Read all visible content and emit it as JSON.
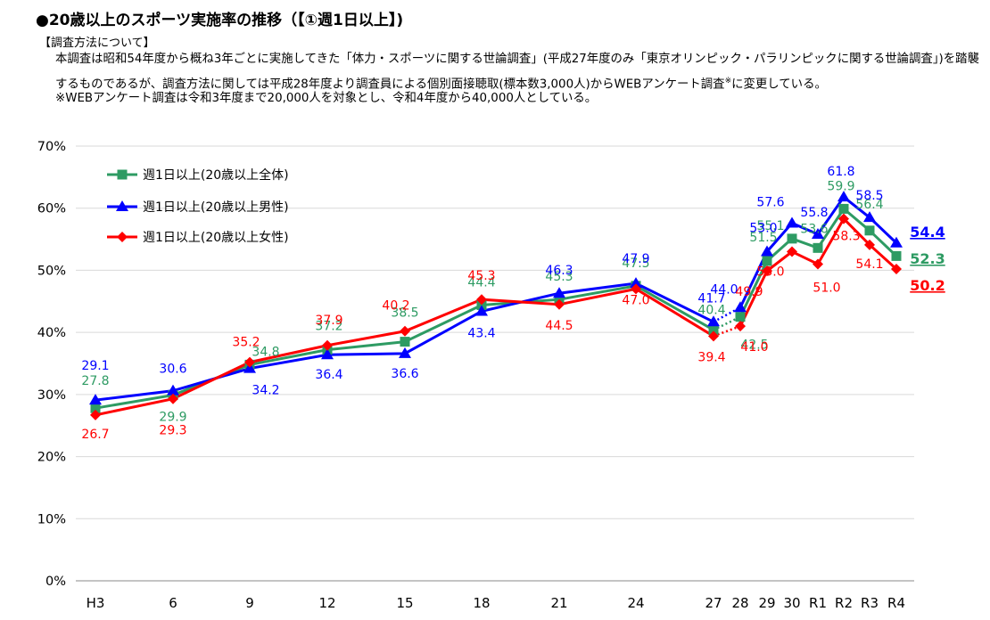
{
  "header": {
    "title": "●20歳以上のスポーツ実施率の推移（【①週1日以上】)",
    "method_heading": "【調査方法について】",
    "line1": "本調査は昭和54年度から概ね3年ごとに実施してきた「体力・スポーツに関する世論調査」(平成27年度のみ「東京オリンピック・パラリンピックに関する世論調査」)を踏襲",
    "line2_a": "するものであるが、調査方法に関しては平成28年度より調査員による個別面接聴取(標本数3,000人)からWEBアンケート調査",
    "line2_sup": "※",
    "line2_b": "に変更している。",
    "line3": "※WEBアンケート調査は令和3年度まで20,000人を対象とし、令和4年度から40,000人としている。"
  },
  "chart_data": {
    "type": "line",
    "categories": [
      "H3",
      "6",
      "9",
      "12",
      "15",
      "18",
      "21",
      "24",
      "27",
      "28",
      "29",
      "30",
      "R1",
      "R2",
      "R3",
      "R4"
    ],
    "ylim": [
      0,
      70
    ],
    "yticks": [
      "0%",
      "10%",
      "20%",
      "30%",
      "40%",
      "50%",
      "60%",
      "70%"
    ],
    "legend_position": "top-left",
    "grid": "horizontal",
    "series": [
      {
        "name": "週1日以上(20歳以上全体)",
        "color": "#2e9b63",
        "marker": "square",
        "values": [
          27.8,
          29.9,
          34.8,
          37.2,
          38.5,
          44.4,
          45.3,
          47.5,
          40.4,
          42.5,
          51.5,
          55.1,
          53.6,
          59.9,
          56.4,
          52.3
        ],
        "end_label": "52.3"
      },
      {
        "name": "週1日以上(20歳以上男性)",
        "color": "#0000ff",
        "marker": "triangle",
        "values": [
          29.1,
          30.6,
          34.2,
          36.4,
          36.6,
          43.4,
          46.3,
          47.9,
          41.7,
          44.0,
          53.0,
          57.6,
          55.8,
          61.8,
          58.5,
          54.4
        ],
        "end_label": "54.4"
      },
      {
        "name": "週1日以上(20歳以上女性)",
        "color": "#ff0000",
        "marker": "diamond",
        "values": [
          26.7,
          29.3,
          35.2,
          37.9,
          40.2,
          45.3,
          44.5,
          47.0,
          39.4,
          41.0,
          49.9,
          53.0,
          51.0,
          58.3,
          54.1,
          50.2
        ],
        "end_label": "50.2"
      }
    ],
    "dotted_segment_between": [
      "27",
      "28"
    ]
  }
}
